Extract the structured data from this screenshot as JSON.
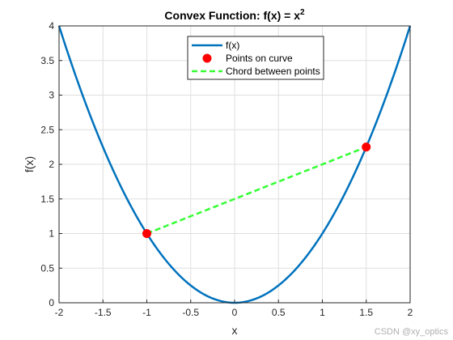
{
  "chart_data": {
    "type": "line",
    "title_main": "Convex Function: f(x) = x",
    "title_exp": "2",
    "xlabel": "x",
    "ylabel": "f(x)",
    "xlim": [
      -2,
      2
    ],
    "ylim": [
      0,
      4
    ],
    "xticks": [
      -2,
      -1.5,
      -1,
      -0.5,
      0,
      0.5,
      1,
      1.5,
      2
    ],
    "yticks": [
      0,
      0.5,
      1,
      1.5,
      2,
      2.5,
      3,
      3.5,
      4
    ],
    "grid": true,
    "legend_position": "top-center",
    "series": [
      {
        "name": "f(x)",
        "kind": "curve",
        "function": "x^2",
        "x_range": [
          -2,
          2
        ],
        "color": "#0072BD"
      },
      {
        "name": "Points on curve",
        "kind": "points",
        "x": [
          -1,
          1.5
        ],
        "y": [
          1,
          2.25
        ],
        "color": "#FF0000"
      },
      {
        "name": "Chord between points",
        "kind": "dashed-line",
        "x": [
          -1,
          1.5
        ],
        "y": [
          1,
          2.25
        ],
        "color": "#33FF33"
      }
    ]
  },
  "watermark": "CSDN @xy_optics"
}
